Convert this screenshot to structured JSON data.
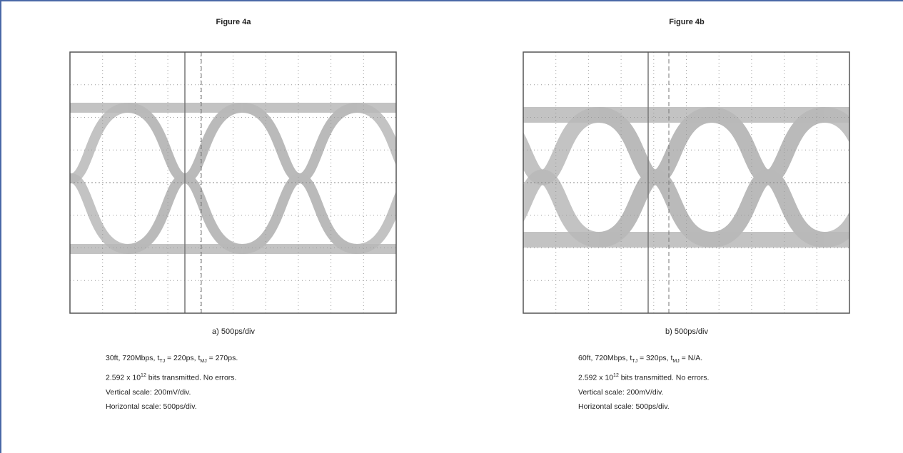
{
  "figures": [
    {
      "title": "Figure 4a",
      "caption": "a) 500ps/div",
      "notes": [
        [
          "30ft, 720Mbps, t",
          "TJ",
          " = 220ps, t",
          "MJ",
          " = 270ps."
        ],
        [
          "2.592 x 10",
          "12",
          " bits transmitted. No errors."
        ],
        [
          "Vertical scale: 200mV/div."
        ],
        [
          "Horizontal scale: 500ps/div."
        ]
      ]
    },
    {
      "title": "Figure 4b",
      "caption": "b) 500ps/div",
      "notes": [
        [
          "60ft, 720Mbps, t",
          "TJ",
          " = 320ps, t",
          "MJ",
          " = N/A."
        ],
        [
          "2.592 x 10",
          "12",
          " bits transmitted. No errors."
        ],
        [
          "Vertical scale: 200mV/div."
        ],
        [
          "Horizontal scale: 500ps/div."
        ]
      ]
    }
  ]
}
